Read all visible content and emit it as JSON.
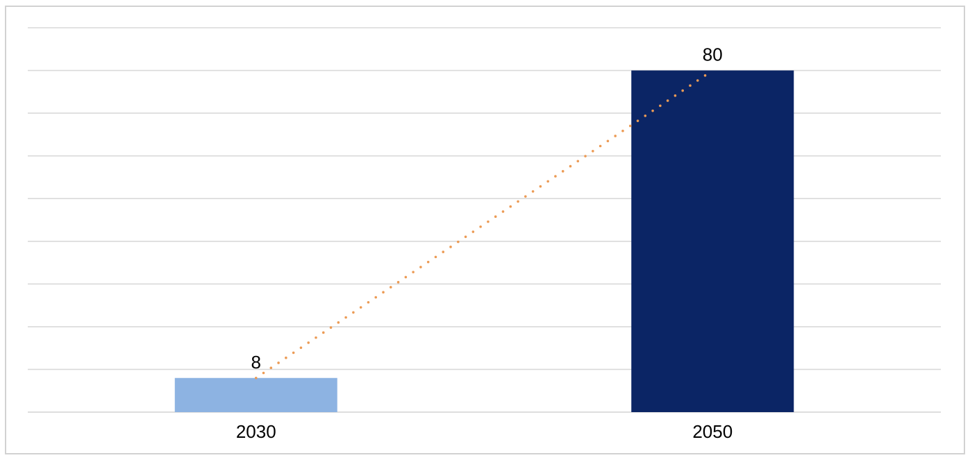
{
  "chart_data": {
    "type": "bar",
    "title": "",
    "xlabel": "",
    "ylabel": "",
    "categories": [
      "2030",
      "2050"
    ],
    "values": [
      8,
      80
    ],
    "data_labels": [
      "8",
      "80"
    ],
    "series": [
      {
        "name": "bar-series",
        "type": "bar",
        "values": [
          8,
          80
        ]
      },
      {
        "name": "trend-dotted-line",
        "type": "line",
        "style": "dotted",
        "values": [
          8,
          80
        ]
      }
    ],
    "ylim": [
      0,
      90
    ],
    "gridline_step": 10,
    "grid": true,
    "y_axis_tick_labels_visible": false,
    "legend": "none",
    "colors": {
      "bars": [
        "#8DB3E2",
        "#0B2565"
      ],
      "trendline": "#EC9B55",
      "gridline": "#D9D9D9",
      "axis_line": "#D9D9D9",
      "frame_border": "#D2D2D2",
      "label_text": "#000000",
      "background": "#FFFFFF"
    }
  }
}
